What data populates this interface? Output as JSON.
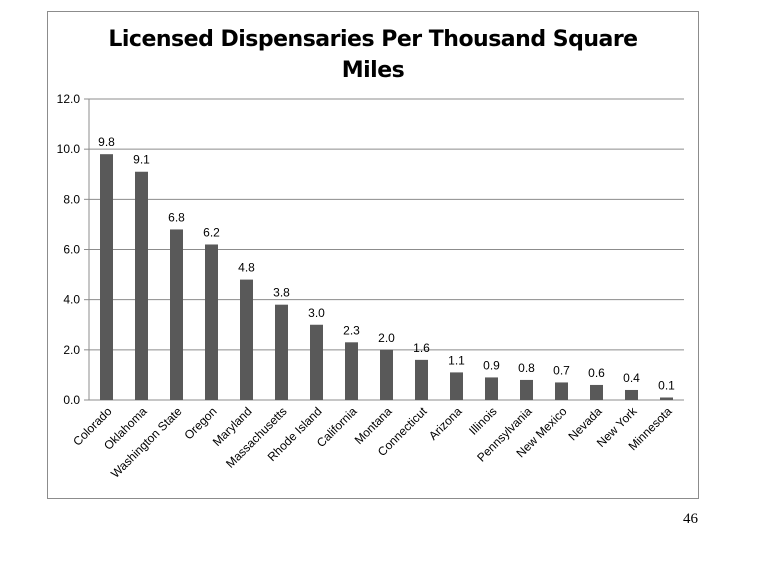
{
  "page": {
    "number": "46"
  },
  "chart_data": {
    "type": "bar",
    "title": "Licensed Dispensaries Per Thousand Square Miles",
    "title_lines": [
      "Licensed Dispensaries Per Thousand Square",
      "Miles"
    ],
    "xlabel": "",
    "ylabel": "",
    "ylim": [
      0,
      12
    ],
    "yticks": [
      "0.0",
      "2.0",
      "4.0",
      "6.0",
      "8.0",
      "10.0",
      "12.0"
    ],
    "grid": true,
    "bar_color": "#595959",
    "categories": [
      "Colorado",
      "Oklahoma",
      "Washington State",
      "Oregon",
      "Maryland",
      "Massachusetts",
      "Rhode Island",
      "California",
      "Montana",
      "Connecticut",
      "Arizona",
      "Illinois",
      "Pennsylvania",
      "New Mexico",
      "Nevada",
      "New York",
      "Minnesota"
    ],
    "values": [
      9.8,
      9.1,
      6.8,
      6.2,
      4.8,
      3.8,
      3.0,
      2.3,
      2.0,
      1.6,
      1.1,
      0.9,
      0.8,
      0.7,
      0.6,
      0.4,
      0.1
    ],
    "data_labels": [
      "9.8",
      "9.1",
      "6.8",
      "6.2",
      "4.8",
      "3.8",
      "3.0",
      "2.3",
      "2.0",
      "1.6",
      "1.1",
      "0.9",
      "0.8",
      "0.7",
      "0.6",
      "0.4",
      "0.1"
    ]
  }
}
